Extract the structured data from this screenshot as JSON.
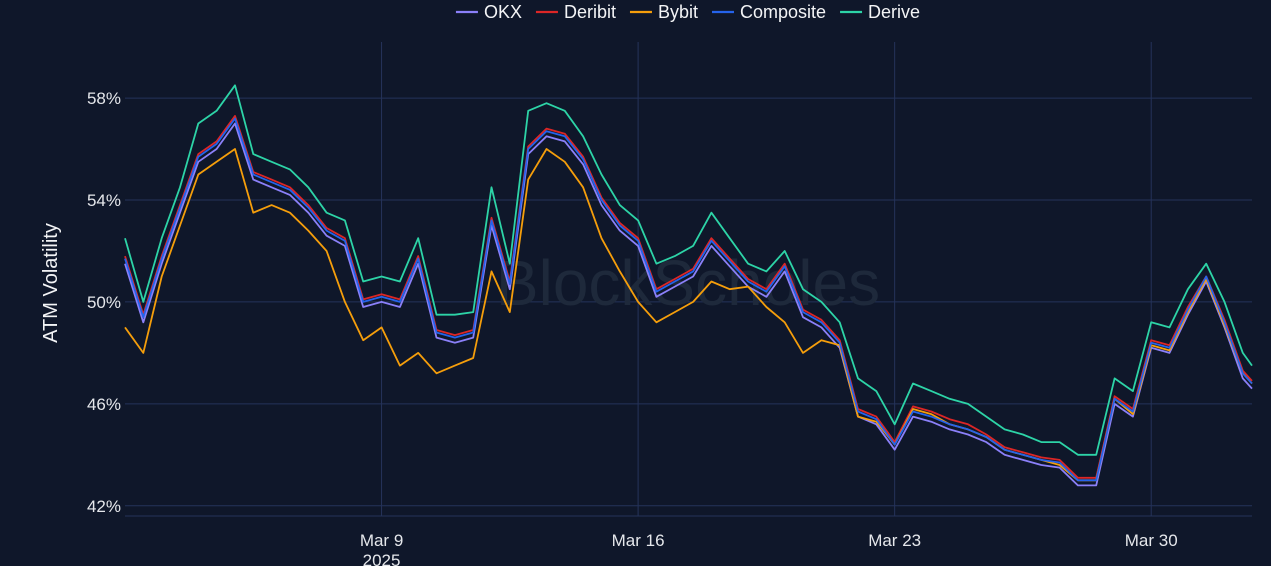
{
  "chart_data": {
    "type": "line",
    "title": "",
    "xlabel": "",
    "ylabel": "ATM Volatility",
    "watermark": "BlockScholes",
    "x_tick_labels": [
      {
        "date": "2025-03-09",
        "label": "Mar 9",
        "sublabel": "2025"
      },
      {
        "date": "2025-03-16",
        "label": "Mar 16",
        "sublabel": ""
      },
      {
        "date": "2025-03-23",
        "label": "Mar 23",
        "sublabel": ""
      },
      {
        "date": "2025-03-30",
        "label": "Mar 30",
        "sublabel": ""
      }
    ],
    "y_ticks": [
      42,
      46,
      50,
      54,
      58
    ],
    "y_tick_labels": [
      "42%",
      "46%",
      "50%",
      "54%",
      "58%"
    ],
    "ylim": [
      41.6,
      60.2
    ],
    "xlim": [
      "2025-03-02 00:00",
      "2025-04-01 18:00"
    ],
    "grid": true,
    "legend_position": "top-center",
    "x": [
      "2025-03-02 00:00",
      "2025-03-02 12:00",
      "2025-03-03 00:00",
      "2025-03-03 12:00",
      "2025-03-04 00:00",
      "2025-03-04 12:00",
      "2025-03-05 00:00",
      "2025-03-05 12:00",
      "2025-03-06 00:00",
      "2025-03-06 12:00",
      "2025-03-07 00:00",
      "2025-03-07 12:00",
      "2025-03-08 00:00",
      "2025-03-08 12:00",
      "2025-03-09 00:00",
      "2025-03-09 12:00",
      "2025-03-10 00:00",
      "2025-03-10 12:00",
      "2025-03-11 00:00",
      "2025-03-11 12:00",
      "2025-03-12 00:00",
      "2025-03-12 12:00",
      "2025-03-13 00:00",
      "2025-03-13 12:00",
      "2025-03-14 00:00",
      "2025-03-14 12:00",
      "2025-03-15 00:00",
      "2025-03-15 12:00",
      "2025-03-16 00:00",
      "2025-03-16 12:00",
      "2025-03-17 00:00",
      "2025-03-17 12:00",
      "2025-03-18 00:00",
      "2025-03-18 12:00",
      "2025-03-19 00:00",
      "2025-03-19 12:00",
      "2025-03-20 00:00",
      "2025-03-20 12:00",
      "2025-03-21 00:00",
      "2025-03-21 12:00",
      "2025-03-22 00:00",
      "2025-03-22 12:00",
      "2025-03-23 00:00",
      "2025-03-23 12:00",
      "2025-03-24 00:00",
      "2025-03-24 12:00",
      "2025-03-25 00:00",
      "2025-03-25 12:00",
      "2025-03-26 00:00",
      "2025-03-26 12:00",
      "2025-03-27 00:00",
      "2025-03-27 12:00",
      "2025-03-28 00:00",
      "2025-03-28 12:00",
      "2025-03-29 00:00",
      "2025-03-29 12:00",
      "2025-03-30 00:00",
      "2025-03-30 12:00",
      "2025-03-31 00:00",
      "2025-03-31 12:00",
      "2025-04-01 00:00",
      "2025-04-01 12:00",
      "2025-04-01 18:00"
    ],
    "series": [
      {
        "name": "OKX",
        "color": "#8b80f9",
        "values": [
          51.5,
          49.2,
          51.5,
          53.5,
          55.5,
          56.0,
          57.0,
          54.8,
          54.5,
          54.2,
          53.5,
          52.6,
          52.2,
          49.8,
          50.0,
          49.8,
          51.5,
          48.6,
          48.4,
          48.6,
          53.0,
          50.5,
          55.8,
          56.5,
          56.3,
          55.4,
          53.8,
          52.8,
          52.2,
          50.2,
          50.6,
          51.0,
          52.2,
          51.4,
          50.6,
          50.2,
          51.2,
          49.4,
          49.0,
          48.2,
          45.5,
          45.2,
          44.2,
          45.5,
          45.3,
          45.0,
          44.8,
          44.5,
          44.0,
          43.8,
          43.6,
          43.5,
          42.8,
          42.8,
          46.0,
          45.5,
          48.2,
          48.0,
          49.5,
          50.8,
          49.0,
          47.0,
          46.6
        ]
      },
      {
        "name": "Deribit",
        "color": "#dc2626",
        "values": [
          51.8,
          49.5,
          51.8,
          53.8,
          55.8,
          56.3,
          57.3,
          55.1,
          54.8,
          54.5,
          53.8,
          52.9,
          52.5,
          50.1,
          50.3,
          50.1,
          51.8,
          48.9,
          48.7,
          48.9,
          53.3,
          50.8,
          56.1,
          56.8,
          56.6,
          55.7,
          54.1,
          53.1,
          52.5,
          50.5,
          50.9,
          51.3,
          52.5,
          51.7,
          50.9,
          50.5,
          51.5,
          49.7,
          49.3,
          48.5,
          45.8,
          45.5,
          44.5,
          45.9,
          45.7,
          45.4,
          45.2,
          44.8,
          44.3,
          44.1,
          43.9,
          43.8,
          43.1,
          43.1,
          46.3,
          45.8,
          48.5,
          48.3,
          49.8,
          51.0,
          49.3,
          47.3,
          46.9
        ]
      },
      {
        "name": "Bybit",
        "color": "#f59e0b",
        "values": [
          49.0,
          48.0,
          51.0,
          53.0,
          55.0,
          55.5,
          56.0,
          53.5,
          53.8,
          53.5,
          52.8,
          52.0,
          50.0,
          48.5,
          49.0,
          47.5,
          48.0,
          47.2,
          47.5,
          47.8,
          51.2,
          49.6,
          54.8,
          56.0,
          55.5,
          54.5,
          52.5,
          51.2,
          50.0,
          49.2,
          49.6,
          50.0,
          50.8,
          50.5,
          50.6,
          49.8,
          49.2,
          48.0,
          48.5,
          48.3,
          45.5,
          45.3,
          44.4,
          45.8,
          45.6,
          45.2,
          45.0,
          44.7,
          44.2,
          44.0,
          43.8,
          43.6,
          43.0,
          43.0,
          46.2,
          45.6,
          48.3,
          48.1,
          49.6,
          50.9,
          49.1,
          47.2,
          46.8
        ]
      },
      {
        "name": "Composite",
        "color": "#2563eb",
        "values": [
          51.7,
          49.4,
          51.7,
          53.7,
          55.7,
          56.2,
          57.2,
          55.0,
          54.7,
          54.4,
          53.7,
          52.8,
          52.4,
          50.0,
          50.2,
          50.0,
          51.7,
          48.8,
          48.6,
          48.8,
          53.2,
          50.7,
          56.0,
          56.7,
          56.5,
          55.6,
          54.0,
          53.0,
          52.4,
          50.4,
          50.8,
          51.2,
          52.4,
          51.6,
          50.8,
          50.4,
          51.4,
          49.6,
          49.2,
          48.4,
          45.7,
          45.4,
          44.4,
          45.7,
          45.5,
          45.2,
          45.0,
          44.7,
          44.2,
          44.0,
          43.8,
          43.7,
          43.0,
          43.0,
          46.2,
          45.7,
          48.4,
          48.2,
          49.7,
          51.0,
          49.2,
          47.2,
          46.8
        ]
      },
      {
        "name": "Derive",
        "color": "#2dd4a7",
        "values": [
          52.5,
          50.0,
          52.5,
          54.5,
          57.0,
          57.5,
          58.5,
          55.8,
          55.5,
          55.2,
          54.5,
          53.5,
          53.2,
          50.8,
          51.0,
          50.8,
          52.5,
          49.5,
          49.5,
          49.6,
          54.5,
          51.5,
          57.5,
          57.8,
          57.5,
          56.5,
          55.0,
          53.8,
          53.2,
          51.5,
          51.8,
          52.2,
          53.5,
          52.5,
          51.5,
          51.2,
          52.0,
          50.5,
          50.0,
          49.2,
          47.0,
          46.5,
          45.2,
          46.8,
          46.5,
          46.2,
          46.0,
          45.5,
          45.0,
          44.8,
          44.5,
          44.5,
          44.0,
          44.0,
          47.0,
          46.5,
          49.2,
          49.0,
          50.5,
          51.5,
          50.0,
          48.0,
          47.5
        ]
      }
    ]
  }
}
